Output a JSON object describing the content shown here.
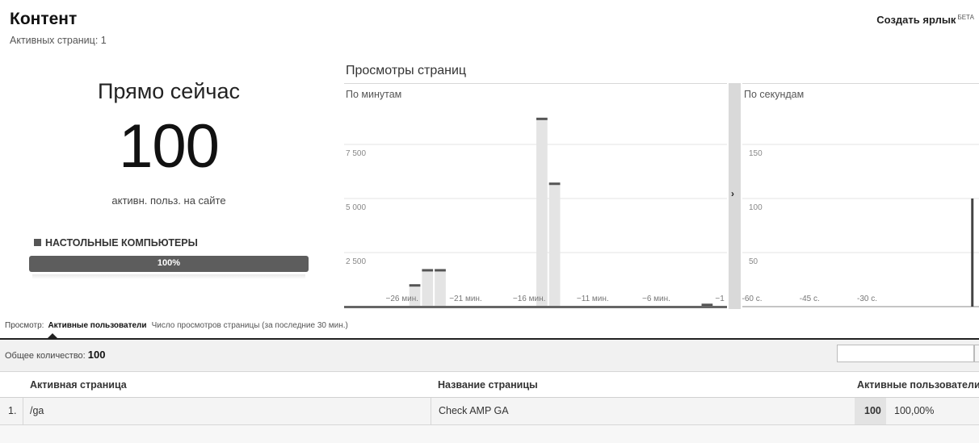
{
  "header": {
    "title": "Контент",
    "active_pages": "Активных страниц: 1",
    "shortcut_label": "Создать ярлык",
    "shortcut_badge": "БЕТА"
  },
  "right_now": {
    "label": "Прямо сейчас",
    "value": "100",
    "description": "активн. польз. на сайте",
    "device_label": "Настольные компьютеры",
    "device_percent_text": "100%",
    "device_share": 1.0
  },
  "pageviews": {
    "title": "Просмотры страниц",
    "per_minute_label": "По минутам",
    "per_second_label": "По секундам",
    "expand_arrow": "›"
  },
  "chart_data": [
    {
      "type": "bar",
      "title": "По минутам",
      "ylim": [
        0,
        10000
      ],
      "yticks": [
        "2 500",
        "5 000",
        "7 500"
      ],
      "ytick_values": [
        2500,
        5000,
        7500
      ],
      "x": [
        -30,
        -29,
        -28,
        -27,
        -26,
        -25,
        -24,
        -23,
        -22,
        -21,
        -20,
        -19,
        -18,
        -17,
        -16,
        -15,
        -14,
        -13,
        -12,
        -11,
        -10,
        -9,
        -8,
        -7,
        -6,
        -5,
        -4,
        -3,
        -2,
        -1
      ],
      "xtick_labels": [
        "−26 мин.",
        "−21 мин.",
        "−16 мин.",
        "−11 мин.",
        "−6 мин.",
        "−1"
      ],
      "xtick_values": [
        -26,
        -21,
        -16,
        -11,
        -6,
        -1
      ],
      "values": [
        0,
        0,
        0,
        0,
        0,
        1000,
        1700,
        1700,
        0,
        0,
        0,
        0,
        0,
        0,
        0,
        8700,
        5700,
        0,
        0,
        0,
        0,
        0,
        0,
        0,
        0,
        0,
        0,
        0,
        100,
        0
      ],
      "grid": true
    },
    {
      "type": "bar",
      "title": "По секундам",
      "ylim": [
        0,
        200
      ],
      "yticks": [
        "50",
        "100",
        "150"
      ],
      "ytick_values": [
        50,
        100,
        150
      ],
      "x_range": [
        -60,
        0
      ],
      "xtick_labels": [
        "-60 с.",
        "-45 с.",
        "-30 с."
      ],
      "xtick_values": [
        -60,
        -45,
        -30
      ],
      "x": [
        -1
      ],
      "values": [
        100
      ],
      "grid": true
    }
  ],
  "view_switch": {
    "prefix": "Просмотр:",
    "active": "Активные пользователи",
    "other": "Число просмотров страницы (за последние 30 мин.)"
  },
  "summary": {
    "total_label": "Общее количество:",
    "total_value": "100",
    "filter_value": ""
  },
  "table": {
    "headers": [
      "Активная страница",
      "Название страницы",
      "Активные пользователи"
    ],
    "rows": [
      {
        "index": "1.",
        "page": "/ga",
        "title": "Check AMP GA",
        "count": "100",
        "percent": "100,00%"
      }
    ]
  }
}
